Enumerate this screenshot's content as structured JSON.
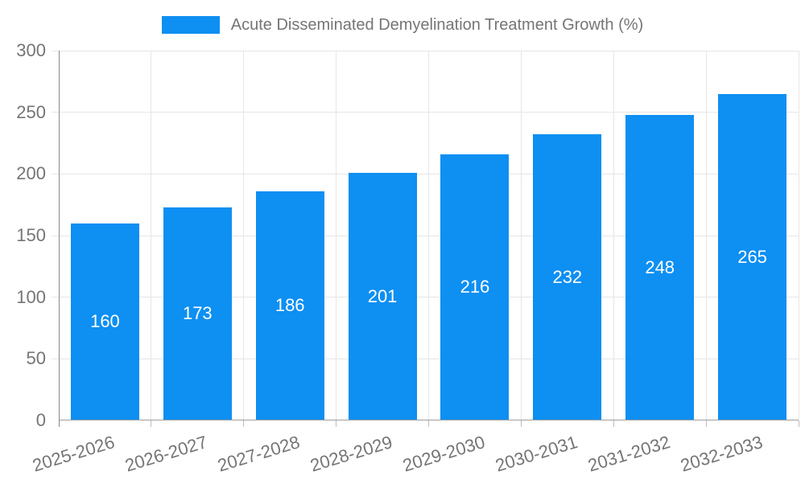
{
  "chart_data": {
    "type": "bar",
    "title": "Acute Disseminated Demyelination Treatment Growth (%)",
    "categories": [
      "2025-2026",
      "2026-2027",
      "2027-2028",
      "2028-2029",
      "2029-2030",
      "2030-2031",
      "2031-2032",
      "2032-2033"
    ],
    "values": [
      160,
      173,
      186,
      201,
      216,
      232,
      248,
      265
    ],
    "xlabel": "",
    "ylabel": "",
    "ylim": [
      0,
      300
    ],
    "yticks": [
      0,
      50,
      100,
      150,
      200,
      250,
      300
    ],
    "grid": true,
    "legend_position": "top",
    "value_labels_inside_bars": true,
    "colors": {
      "bar": "#0e8ff2",
      "axis_text": "#757575",
      "gridline": "#e6e6e6",
      "axis_line": "#8a8a8a",
      "baseline": "#9e9e9e",
      "tick": "#bdbdbd",
      "value_label": "#ffffff",
      "background": "#ffffff"
    }
  }
}
